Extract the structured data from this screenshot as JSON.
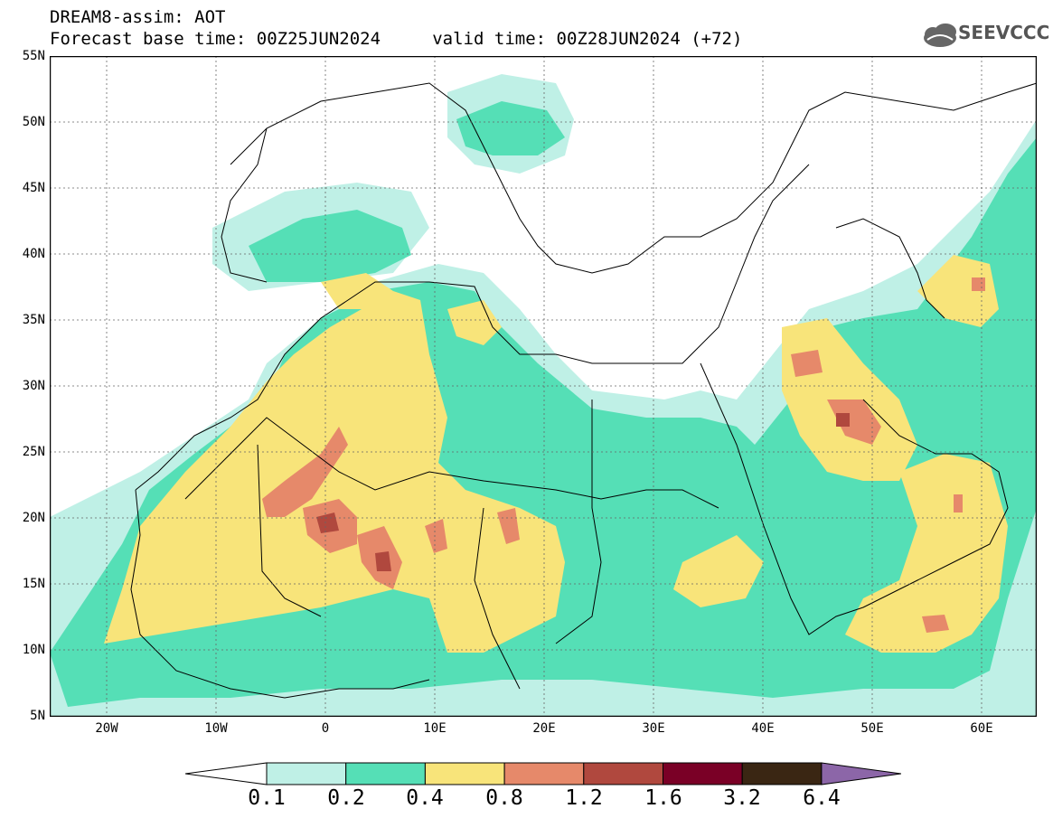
{
  "header": {
    "title_line1": "DREAM8-assim: AOT",
    "title_line2": "Forecast base time: 00Z25JUN2024     valid time: 00Z28JUN2024 (+72)",
    "logo_text": "SEEVCCC"
  },
  "axes": {
    "y_ticks": [
      "55N",
      "50N",
      "45N",
      "40N",
      "35N",
      "30N",
      "25N",
      "20N",
      "15N",
      "10N",
      "5N"
    ],
    "x_ticks": [
      "20W",
      "10W",
      "0",
      "10E",
      "20E",
      "30E",
      "40E",
      "50E",
      "60E"
    ]
  },
  "colorbar": {
    "labels": [
      "0.1",
      "0.2",
      "0.4",
      "0.8",
      "1.2",
      "1.6",
      "3.2",
      "6.4"
    ],
    "colors": [
      "#ffffff",
      "#bff0e6",
      "#55dfb6",
      "#f8e47a",
      "#e6896a",
      "#b0483e",
      "#7a0026",
      "#3a2613",
      "#8c66a8"
    ]
  },
  "map": {
    "colors": {
      "light": "#bff0e6",
      "green": "#55dfb6",
      "yellow": "#f8e47a",
      "orange": "#e6896a",
      "red": "#b0483e"
    }
  }
}
